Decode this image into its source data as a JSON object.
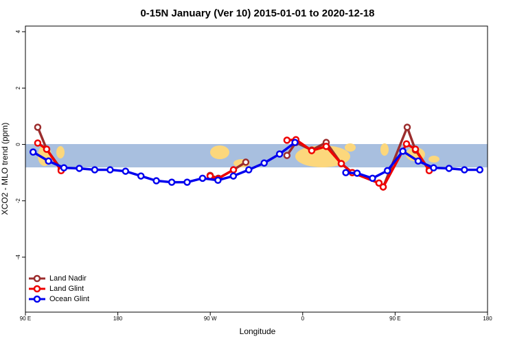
{
  "chart_data": {
    "type": "line",
    "title": "0-15N January (Ver 10)   2015-01-01 to 2020-12-18",
    "xlabel": "Longitude",
    "ylabel": "XCO2 - MLO trend (ppm)",
    "xlim": [
      90,
      540
    ],
    "ylim": [
      -5.95,
      4.2
    ],
    "xticks": [
      {
        "value": 90,
        "label": "90 E"
      },
      180,
      {
        "value": 270,
        "label": "90 W"
      },
      {
        "value": 360,
        "label": "0"
      },
      {
        "value": 450,
        "label": "90 E"
      },
      {
        "value": 540,
        "label": "180"
      }
    ],
    "yticks": [
      -4,
      -2,
      0,
      2,
      4
    ],
    "legend": "bottom-left",
    "series": [
      {
        "name": "Land Nadir",
        "color": "#9b2d2d",
        "x": [
          102,
          110.7,
          124.8,
          null,
          269.9,
          277.9,
          292.6,
          304.6,
          null,
          344.7,
          353.4,
          368.8,
          382.9,
          397.6,
          408.3,
          434.3,
          438.4,
          461.8,
          469.8,
          483.2
        ],
        "values": [
          0.61,
          -0.17,
          -0.88,
          null,
          -1.1,
          -1.2,
          -0.9,
          -0.63,
          null,
          -0.39,
          0.07,
          -0.2,
          0.07,
          -0.68,
          -1.0,
          -1.37,
          -1.51,
          0.61,
          -0.2,
          -0.9
        ]
      },
      {
        "name": "Land Glint",
        "color": "#ee0000",
        "x": [
          102,
          110.7,
          124.8,
          null,
          269.9,
          277.2,
          292.6,
          null,
          344.7,
          353.4,
          368.8,
          382.9,
          397.6,
          408.3,
          434.3,
          438.4,
          461.1,
          469.8,
          483.2
        ],
        "values": [
          0.05,
          -0.17,
          -0.93,
          null,
          -1.12,
          -1.22,
          -0.9,
          null,
          0.15,
          0.17,
          -0.22,
          -0.07,
          -0.68,
          -1.0,
          -1.37,
          -1.51,
          0.02,
          -0.17,
          -0.93
        ]
      },
      {
        "name": "Ocean Glint",
        "color": "#0000ee",
        "x": [
          97.5,
          112.5,
          127.5,
          142.5,
          157.5,
          172.5,
          187.5,
          202.5,
          217.5,
          232.5,
          247.5,
          262.5,
          277.5,
          292.5,
          307.5,
          322.5,
          337.5,
          352.5,
          null,
          402,
          413,
          428,
          442.5,
          457.5,
          472.5,
          487.5,
          502.5,
          517.5,
          532.5
        ],
        "values": [
          -0.27,
          -0.59,
          -0.83,
          -0.85,
          -0.9,
          -0.9,
          -0.95,
          -1.12,
          -1.29,
          -1.34,
          -1.34,
          -1.2,
          -1.27,
          -1.12,
          -0.9,
          -0.66,
          -0.34,
          0.07,
          null,
          -1.0,
          -1.02,
          -1.2,
          -0.93,
          -0.24,
          -0.59,
          -0.83,
          -0.85,
          -0.9,
          -0.9
        ]
      }
    ]
  }
}
